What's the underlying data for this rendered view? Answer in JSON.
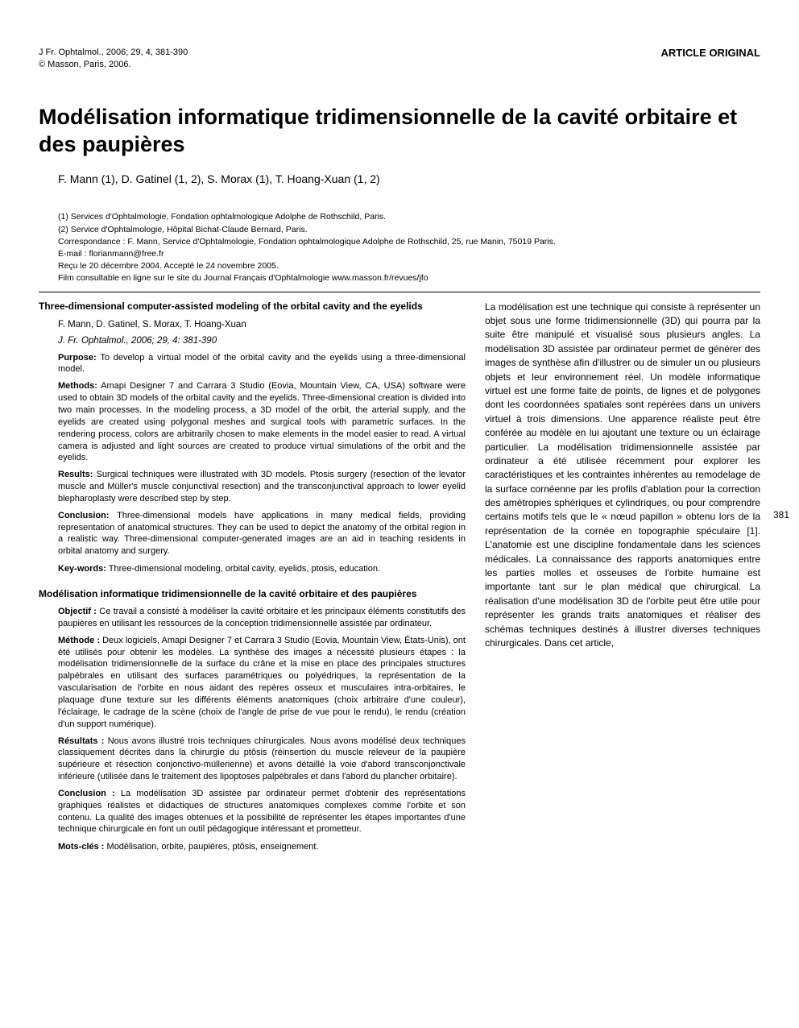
{
  "header": {
    "journal_line": "J Fr. Ophtalmol., 2006; 29, 4, 381-390",
    "copyright_line": "© Masson, Paris, 2006.",
    "article_type": "ARTICLE ORIGINAL"
  },
  "title": "Modélisation informatique tridimensionnelle de la cavité orbitaire et des paupières",
  "authors": "F. Mann (1), D. Gatinel (1, 2), S. Morax (1), T. Hoang-Xuan (1, 2)",
  "affiliations": {
    "aff1": "(1) Services d'Ophtalmologie, Fondation ophtalmologique Adolphe de Rothschild, Paris.",
    "aff2": "(2) Service d'Ophtalmologie, Hôpital Bichat-Claude Bernard, Paris.",
    "correspondence": "Correspondance : F. Mann, Service d'Ophtalmologie, Fondation ophtalmologique Adolphe de Rothschild, 25, rue Manin, 75019 Paris.",
    "email": "E-mail : florianmann@free.fr",
    "dates": "Reçu le 20 décembre 2004. Accepté le 24 novembre 2005.",
    "film": "Film consultable en ligne sur le site du Journal Français d'Ophtalmologie www.masson.fr/revues/jfo"
  },
  "abstract_en": {
    "title": "Three-dimensional computer-assisted modeling of the orbital cavity and the eyelids",
    "authors": "F. Mann, D. Gatinel, S. Morax, T. Hoang-Xuan",
    "citation": "J. Fr. Ophtalmol., 2006; 29, 4: 381-390",
    "purpose_label": "Purpose:",
    "purpose": " To develop a virtual model of the orbital cavity and the eyelids using a three-dimensional model.",
    "methods_label": "Methods:",
    "methods": " Amapi Designer 7 and Carrara 3 Studio (Eovia, Mountain View, CA, USA) software were used to obtain 3D models of the orbital cavity and the eyelids. Three-dimensional creation is divided into two main processes. In the modeling process, a 3D model of the orbit, the arterial supply, and the eyelids are created using polygonal meshes and surgical tools with parametric surfaces. In the rendering process, colors are arbitrarily chosen to make elements in the model easier to read. A virtual camera is adjusted and light sources are created to produce virtual simulations of the orbit and the eyelids.",
    "results_label": "Results:",
    "results": " Surgical techniques were illustrated with 3D models. Ptosis surgery (resection of the levator muscle and Müller's muscle conjunctival resection) and the transconjunctival approach to lower eyelid blepharoplasty were described step by step.",
    "conclusion_label": "Conclusion:",
    "conclusion": " Three-dimensional models have applications in many medical fields, providing representation of anatomical structures. They can be used to depict the anatomy of the orbital region in a realistic way. Three-dimensional computer-generated images are an aid in teaching residents in orbital anatomy and surgery.",
    "keywords_label": "Key-words:",
    "keywords": " Three-dimensional modeling, orbital cavity, eyelids, ptosis, education."
  },
  "abstract_fr": {
    "title": "Modélisation informatique tridimensionnelle de la cavité orbitaire et des paupières",
    "objectif_label": "Objectif :",
    "objectif": " Ce travail a consisté à modéliser la cavité orbitaire et les principaux éléments constitutifs des paupières en utilisant les ressources de la conception tridimensionnelle assistée par ordinateur.",
    "methode_label": "Méthode :",
    "methode": " Deux logiciels, Amapi Designer 7 et Carrara 3 Studio (Eovia, Mountain View, États-Unis), ont été utilisés pour obtenir les modèles. La synthèse des images a nécessité plusieurs étapes : la modélisation tridimensionnelle de la surface du crâne et la mise en place des principales structures palpébrales en utilisant des surfaces paramétriques ou polyédriques, la représentation de la vascularisation de l'orbite en nous aidant des repères osseux et musculaires intra-orbitaires, le plaquage d'une texture sur les différents éléments anatomiques (choix arbitraire d'une couleur), l'éclairage, le cadrage de la scène (choix de l'angle de prise de vue pour le rendu), le rendu (création d'un support numérique).",
    "resultats_label": "Résultats :",
    "resultats": " Nous avons illustré trois techniques chirurgicales. Nous avons modélisé deux techniques classiquement décrites dans la chirurgie du ptôsis (réinsertion du muscle releveur de la paupière supérieure et résection conjonctivo-müllerienne) et avons détaillé la voie d'abord transconjonctivale inférieure (utilisée dans le traitement des lipoptoses palpébrales et dans l'abord du plancher orbitaire).",
    "conclusion_label": "Conclusion :",
    "conclusion": " La modélisation 3D assistée par ordinateur permet d'obtenir des représentations graphiques réalistes et didactiques de structures anatomiques complexes comme l'orbite et son contenu. La qualité des images obtenues et la possibilité de représenter les étapes importantes d'une technique chirurgicale en font un outil pédagogique intéressant et prometteur.",
    "motscles_label": "Mots-clés :",
    "motscles": " Modélisation, orbite, paupières, ptôsis, enseignement."
  },
  "intro_text": "La modélisation est une technique qui consiste à représenter un objet sous une forme tridimensionnelle (3D) qui pourra par la suite être manipulé et visualisé sous plusieurs angles. La modélisation 3D assistée par ordinateur permet de générer des images de synthèse afin d'illustrer ou de simuler un ou plusieurs objets et leur environnement réel. Un modèle informatique virtuel est une forme faite de points, de lignes et de polygones dont les coordonnées spatiales sont repérées dans un univers virtuel à trois dimensions. Une apparence réaliste peut être conférée au modèle en lui ajoutant une texture ou un éclairage particulier. La modélisation tridimensionnelle assistée par ordinateur a été utilisée récemment pour explorer les caractéristiques et les contraintes inhérentes au remodelage de la surface cornéenne par les profils d'ablation pour la correction des amétropies sphériques et cylindriques, ou pour comprendre certains motifs tels que le « nœud papillon » obtenu lors de la représentation de la cornée en topographie spéculaire [1]. L'anatomie est une discipline fondamentale dans les sciences médicales. La connaissance des rapports anatomiques entre les parties molles et osseuses de l'orbite humaine est importante tant sur le plan médical que chirurgical. La réalisation d'une modélisation 3D de l'orbite peut être utile pour représenter les grands traits anatomiques et réaliser des schémas techniques destinés à illustrer diverses techniques chirurgicales. Dans cet article,",
  "page_number": "381"
}
